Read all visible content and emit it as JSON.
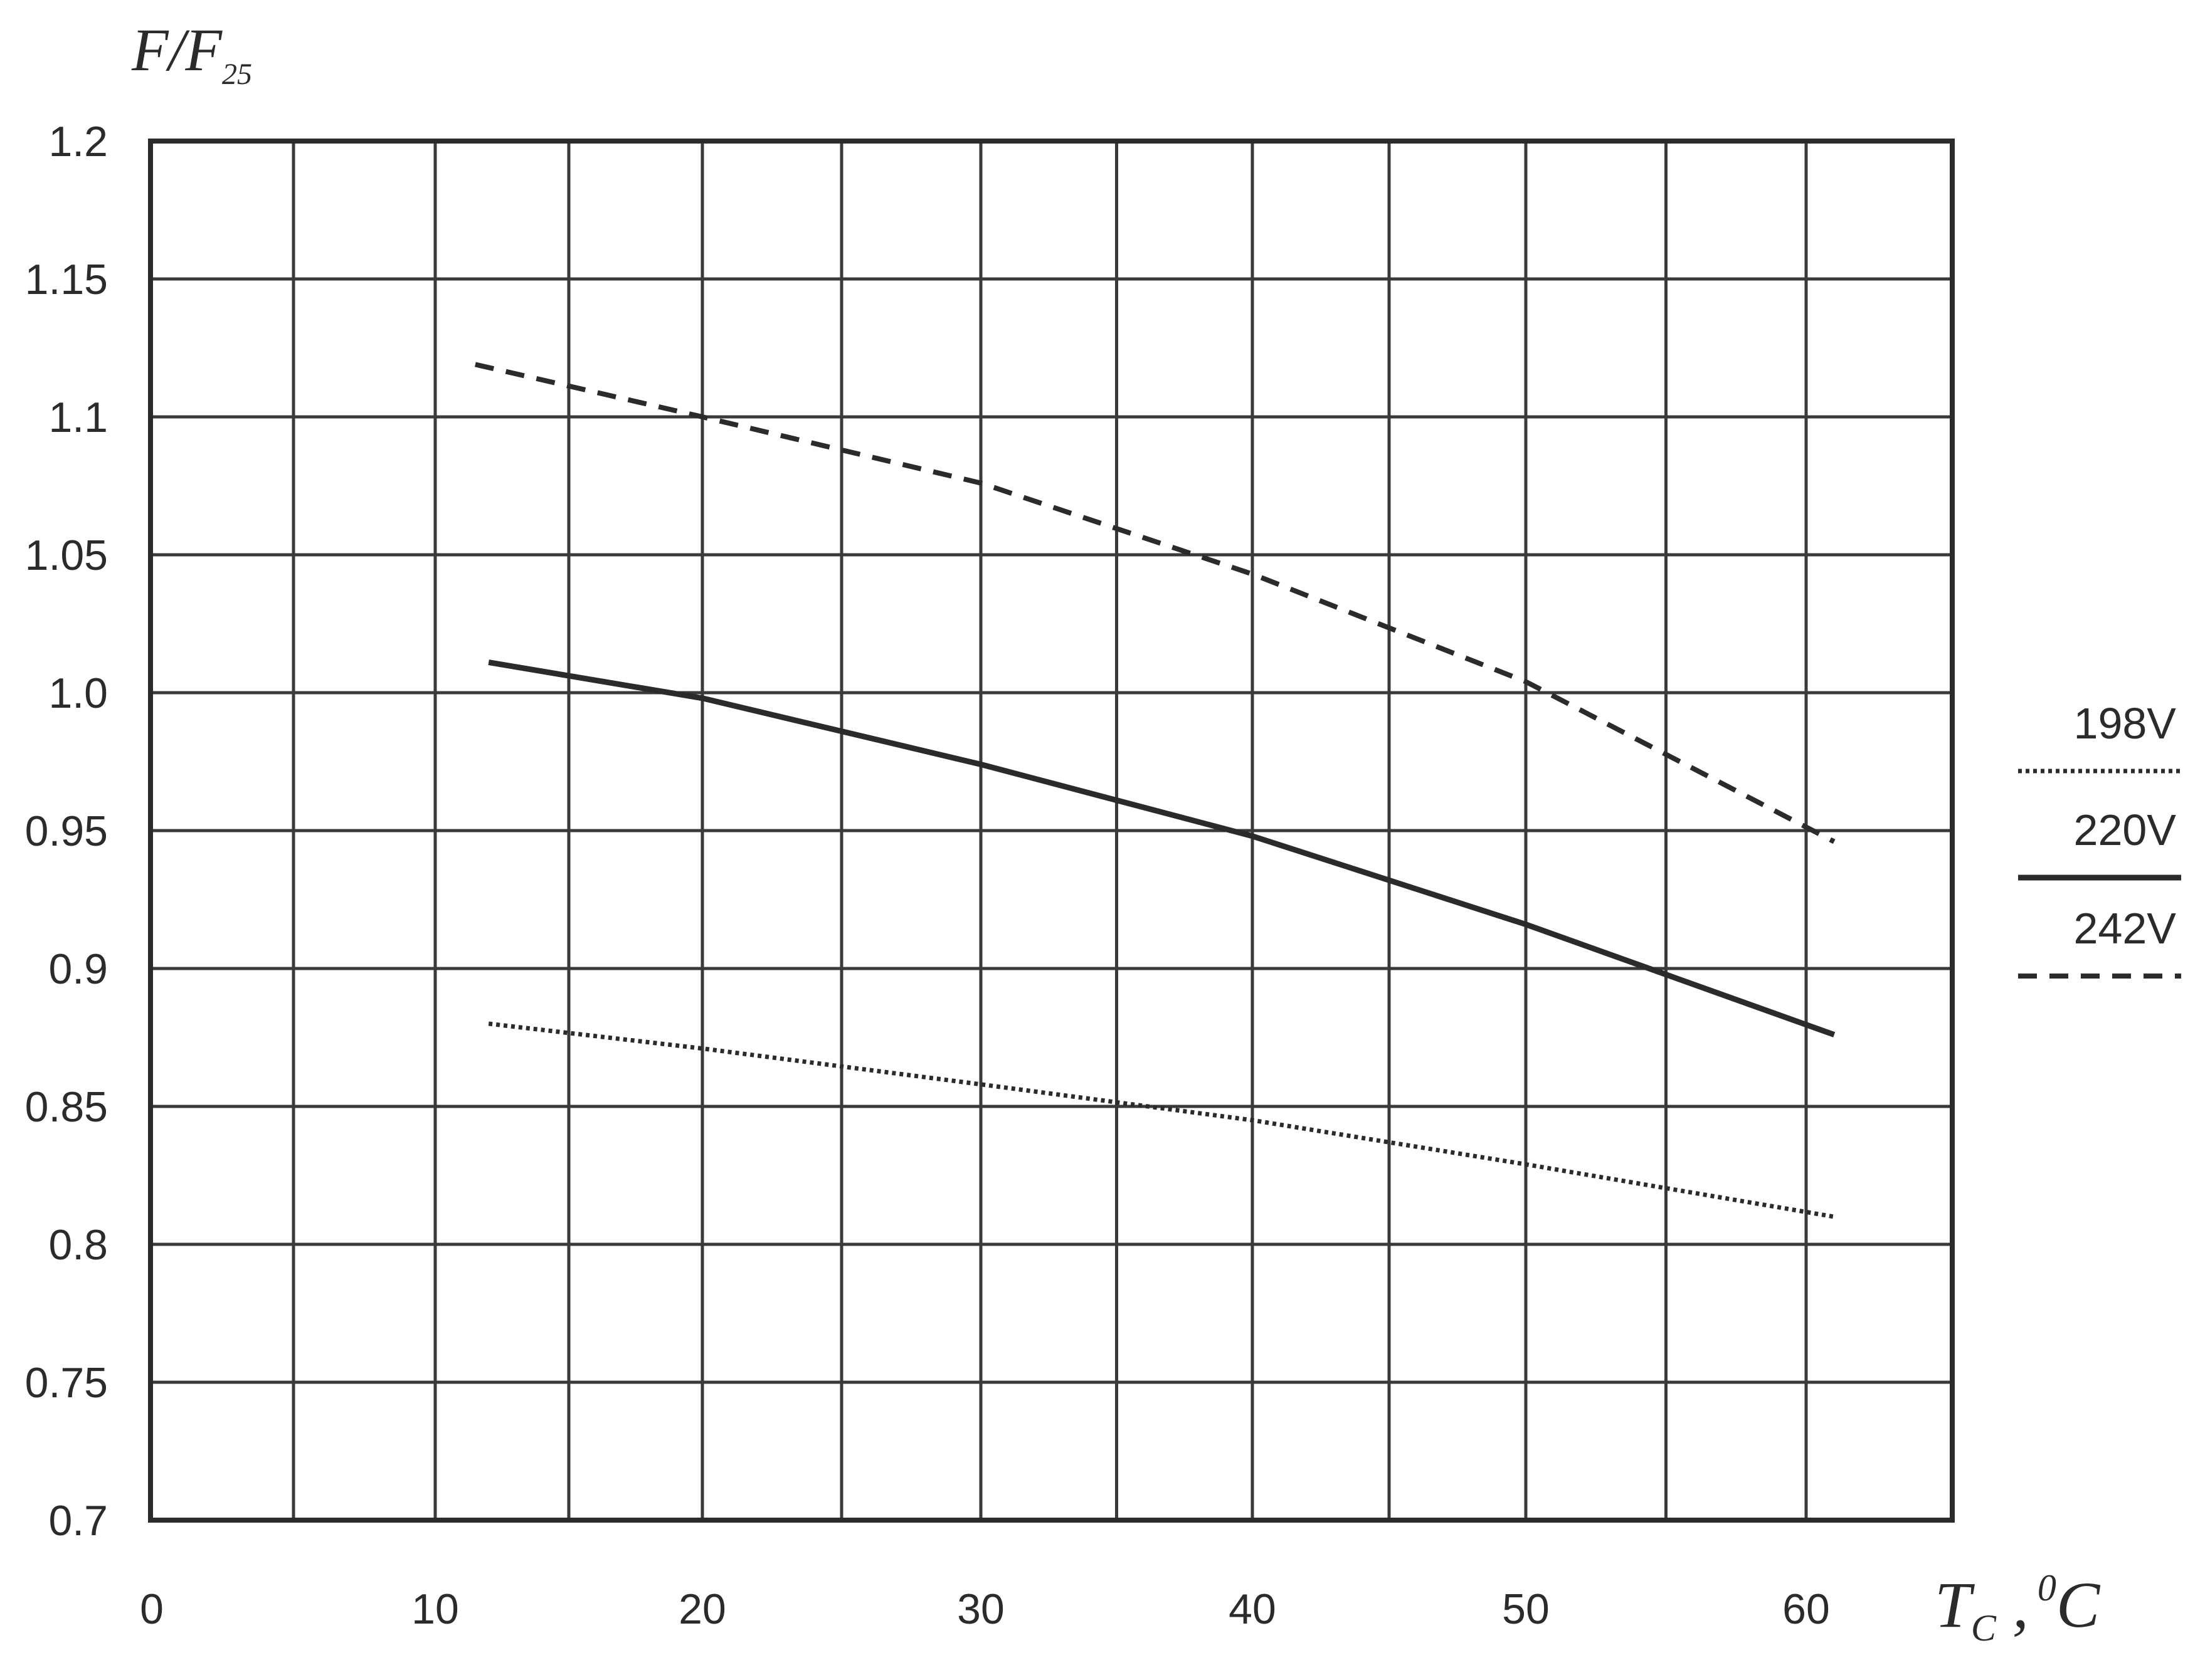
{
  "chart_data": {
    "type": "line",
    "title": "",
    "ylabel": {
      "main": "F/F",
      "sub": "25"
    },
    "xlabel": {
      "main": "T",
      "sub": "C",
      "sep": " ,",
      "sup": "0",
      "unit": "C"
    },
    "x_ticks": [
      "0",
      "10",
      "20",
      "30",
      "40",
      "50",
      "60"
    ],
    "y_ticks": [
      "0.7",
      "0.75",
      "0.8",
      "0.85",
      "0.9",
      "0.95",
      "1.0",
      "1.05",
      "1.1",
      "1.15",
      "1.2"
    ],
    "ylim": [
      0.7,
      1.2
    ],
    "grid": true,
    "legend_position": "right",
    "series": [
      {
        "name": "198V",
        "style": "dotted",
        "color": "#2b2b2b",
        "points": [
          [
            12,
            0.88
          ],
          [
            20,
            0.871
          ],
          [
            30,
            0.858
          ],
          [
            40,
            0.845
          ],
          [
            50,
            0.829
          ],
          [
            61,
            0.81
          ]
        ]
      },
      {
        "name": "220V",
        "style": "solid",
        "color": "#2b2b2b",
        "points": [
          [
            12,
            1.011
          ],
          [
            20,
            0.998
          ],
          [
            30,
            0.974
          ],
          [
            40,
            0.948
          ],
          [
            50,
            0.916
          ],
          [
            61,
            0.876
          ]
        ]
      },
      {
        "name": "242V",
        "style": "dashed",
        "color": "#2b2b2b",
        "points": [
          [
            11.5,
            1.119
          ],
          [
            20,
            1.1
          ],
          [
            30,
            1.076
          ],
          [
            40,
            1.043
          ],
          [
            50,
            1.004
          ],
          [
            61,
            0.946
          ]
        ]
      }
    ]
  }
}
